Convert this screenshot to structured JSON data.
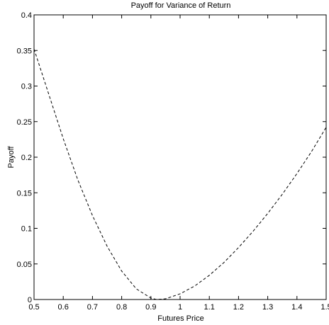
{
  "chart_data": {
    "type": "line",
    "title": "Payoff for Variance of Return",
    "xlabel": "Futures Price",
    "ylabel": "Payoff",
    "xlim": [
      0.5,
      1.5
    ],
    "ylim": [
      0,
      0.4
    ],
    "xticks": [
      0.5,
      0.6,
      0.7,
      0.8,
      0.9,
      1,
      1.1,
      1.2,
      1.3,
      1.4,
      1.5
    ],
    "xtick_labels": [
      "0.5",
      "0.6",
      "0.7",
      "0.8",
      "0.9",
      "1",
      "1.1",
      "1.2",
      "1.3",
      "1.4",
      "1.5"
    ],
    "yticks": [
      0,
      0.05,
      0.1,
      0.15,
      0.2,
      0.25,
      0.3,
      0.35,
      0.4
    ],
    "ytick_labels": [
      "0",
      "0.05",
      "0.1",
      "0.15",
      "0.2",
      "0.25",
      "0.3",
      "0.35",
      "0.4"
    ],
    "grid": false,
    "line_style": "dashed",
    "line_color": "#000000",
    "series": [
      {
        "x": [
          0.5,
          0.55,
          0.6,
          0.65,
          0.7,
          0.75,
          0.8,
          0.85,
          0.9,
          0.92,
          0.95,
          1.0,
          1.05,
          1.1,
          1.15,
          1.2,
          1.25,
          1.3,
          1.35,
          1.4,
          1.45,
          1.5
        ],
        "values": [
          0.352,
          0.289,
          0.226,
          0.168,
          0.118,
          0.075,
          0.04,
          0.015,
          0.002,
          0.0,
          0.001,
          0.008,
          0.019,
          0.034,
          0.052,
          0.073,
          0.096,
          0.121,
          0.148,
          0.177,
          0.208,
          0.242
        ]
      }
    ]
  }
}
